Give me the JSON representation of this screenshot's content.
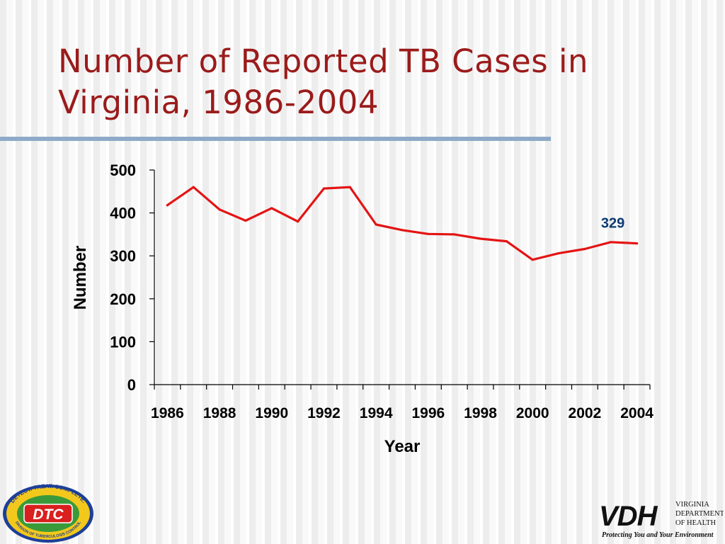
{
  "slide": {
    "title_line1": "Number of Reported TB Cases in",
    "title_line2": "Virginia, 1986-2004"
  },
  "colors": {
    "title": "#9b1b1b",
    "rule": "#8faac8",
    "series_line": "#e41414",
    "annotation": "#0c3a73"
  },
  "chart_data": {
    "type": "line",
    "title": "",
    "xlabel": "Year",
    "ylabel": "Number",
    "ylim": [
      0,
      500
    ],
    "yticks": [
      0,
      100,
      200,
      300,
      400,
      500
    ],
    "x": [
      1986,
      1987,
      1988,
      1989,
      1990,
      1991,
      1992,
      1993,
      1994,
      1995,
      1996,
      1997,
      1998,
      1999,
      2000,
      2001,
      2002,
      2003,
      2004
    ],
    "xticks": [
      1986,
      1988,
      1990,
      1992,
      1994,
      1996,
      1998,
      2000,
      2002,
      2004
    ],
    "series": [
      {
        "values": [
          418,
          460,
          408,
          382,
          411,
          380,
          457,
          460,
          373,
          360,
          351,
          350,
          340,
          334,
          291,
          306,
          316,
          332,
          329
        ]
      }
    ],
    "annotation": {
      "text": "329",
      "x": 2004,
      "y": 329
    },
    "grid": false,
    "legend": "none"
  },
  "logos": {
    "dtc": {
      "text": "DTC",
      "ring_top": "DETECT. TREAT. COMPLETE.",
      "ring_bottom": "DIVISION OF TUBERCULOSIS CONTROL"
    },
    "vdh": {
      "mark": "VDH",
      "line1": "VIRGINIA",
      "line2": "DEPARTMENT",
      "line3": "OF HEALTH",
      "tagline": "Protecting You and Your Environment"
    }
  }
}
